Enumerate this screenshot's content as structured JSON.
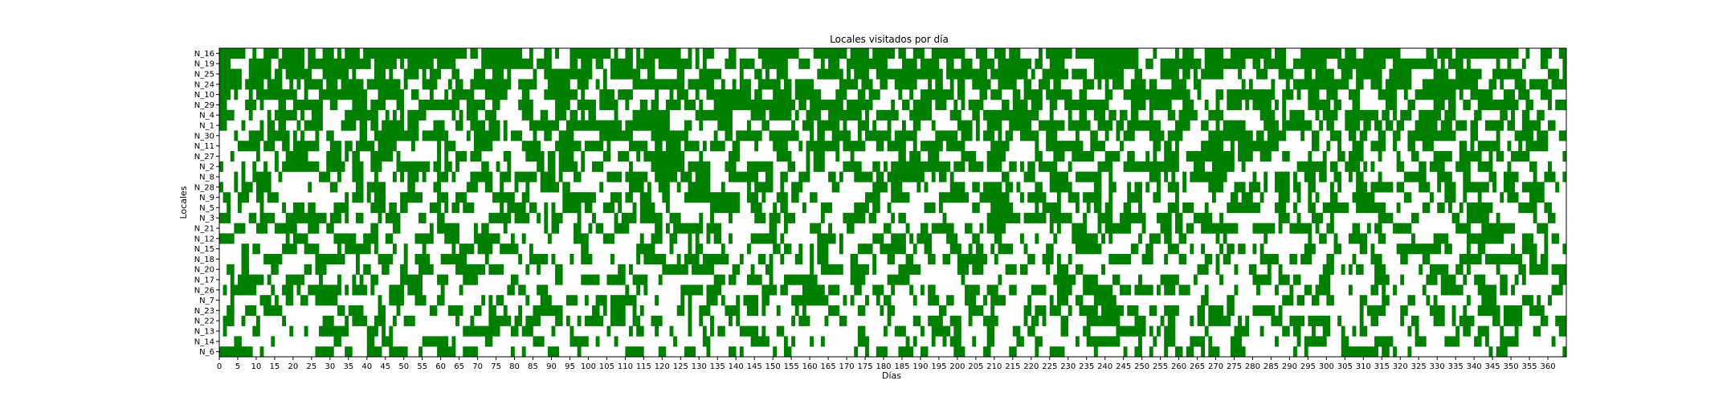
{
  "chart_data": {
    "type": "heatmap",
    "title": "Locales visitados por día",
    "xlabel": "Días",
    "ylabel": "Locales",
    "days": 365,
    "xlim": [
      0,
      365
    ],
    "xticks": [
      0,
      5,
      10,
      15,
      20,
      25,
      30,
      35,
      40,
      45,
      50,
      55,
      60,
      65,
      70,
      75,
      80,
      85,
      90,
      95,
      100,
      105,
      110,
      115,
      120,
      125,
      130,
      135,
      140,
      145,
      150,
      155,
      160,
      165,
      170,
      175,
      180,
      185,
      190,
      195,
      200,
      205,
      210,
      215,
      220,
      225,
      230,
      235,
      240,
      245,
      250,
      255,
      260,
      265,
      270,
      275,
      280,
      285,
      290,
      295,
      300,
      305,
      310,
      315,
      320,
      325,
      330,
      335,
      340,
      345,
      350,
      355,
      360
    ],
    "rows": [
      "N_16",
      "N_19",
      "N_25",
      "N_24",
      "N_10",
      "N_29",
      "N_4",
      "N_1",
      "N_30",
      "N_11",
      "N_27",
      "N_2",
      "N_8",
      "N_28",
      "N_9",
      "N_5",
      "N_3",
      "N_21",
      "N_12",
      "N_15",
      "N_18",
      "N_20",
      "N_17",
      "N_26",
      "N_7",
      "N_23",
      "N_22",
      "N_13",
      "N_14",
      "N_6"
    ],
    "visit_probability": [
      0.72,
      0.68,
      0.65,
      0.63,
      0.62,
      0.6,
      0.58,
      0.57,
      0.56,
      0.55,
      0.54,
      0.53,
      0.52,
      0.5,
      0.48,
      0.46,
      0.45,
      0.44,
      0.42,
      0.41,
      0.4,
      0.39,
      0.38,
      0.37,
      0.36,
      0.35,
      0.34,
      0.33,
      0.32,
      0.31
    ],
    "colors": {
      "visited": "#008000",
      "not_visited": "#ffffff"
    },
    "grid": false,
    "legend": "none"
  }
}
